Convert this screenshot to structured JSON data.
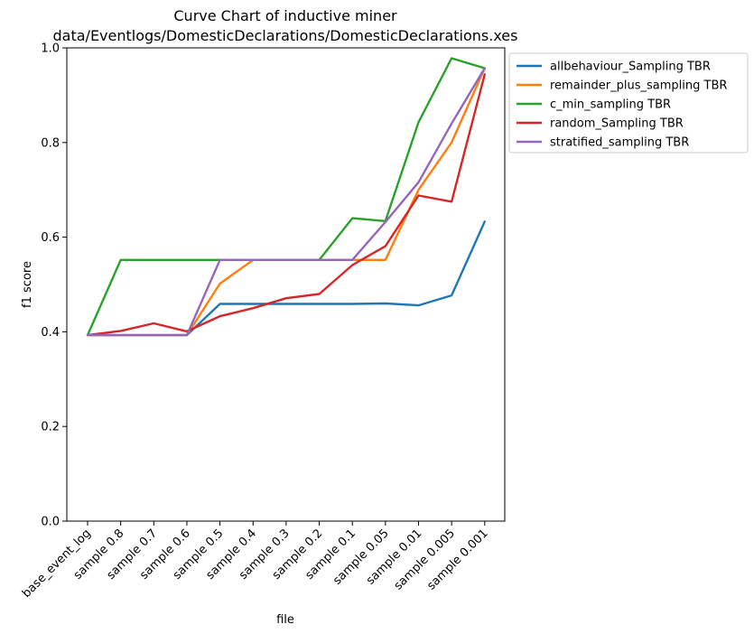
{
  "chart_data": {
    "type": "line",
    "title": [
      "Curve Chart of inductive miner",
      "data/Eventlogs/DomesticDeclarations/DomesticDeclarations.xes"
    ],
    "xlabel": "file",
    "ylabel": "f1 score",
    "ylim": [
      0.0,
      1.0
    ],
    "yticks": [
      "0.0",
      "0.2",
      "0.4",
      "0.6",
      "0.8",
      "1.0"
    ],
    "categories": [
      "base_event_log",
      "sample 0.8",
      "sample 0.7",
      "sample 0.6",
      "sample 0.5",
      "sample 0.4",
      "sample 0.3",
      "sample 0.2",
      "sample 0.1",
      "sample 0.05",
      "sample 0.01",
      "sample 0.005",
      "sample 0.001"
    ],
    "legend_position": "outside upper right",
    "series": [
      {
        "name": "allbehaviour_Sampling TBR",
        "color": "#1f77b4",
        "values": [
          0.393,
          0.393,
          0.393,
          0.393,
          0.459,
          0.459,
          0.459,
          0.459,
          0.459,
          0.46,
          0.456,
          0.477,
          0.633
        ]
      },
      {
        "name": "remainder_plus_sampling TBR",
        "color": "#ff7f0e",
        "values": [
          0.393,
          0.393,
          0.393,
          0.393,
          0.502,
          0.552,
          0.552,
          0.552,
          0.552,
          0.552,
          0.7,
          0.8,
          0.957
        ]
      },
      {
        "name": "c_min_sampling TBR",
        "color": "#2ca02c",
        "values": [
          0.393,
          0.552,
          0.552,
          0.552,
          0.552,
          0.552,
          0.552,
          0.552,
          0.64,
          0.634,
          0.843,
          0.978,
          0.957
        ]
      },
      {
        "name": "random_Sampling TBR",
        "color": "#d62728",
        "values": [
          0.393,
          0.402,
          0.418,
          0.401,
          0.433,
          0.45,
          0.471,
          0.48,
          0.541,
          0.581,
          0.688,
          0.675,
          0.944
        ]
      },
      {
        "name": "stratified_sampling TBR",
        "color": "#9467bd",
        "values": [
          0.393,
          0.393,
          0.393,
          0.393,
          0.552,
          0.552,
          0.552,
          0.552,
          0.552,
          0.632,
          0.716,
          0.84,
          0.957
        ]
      }
    ]
  }
}
